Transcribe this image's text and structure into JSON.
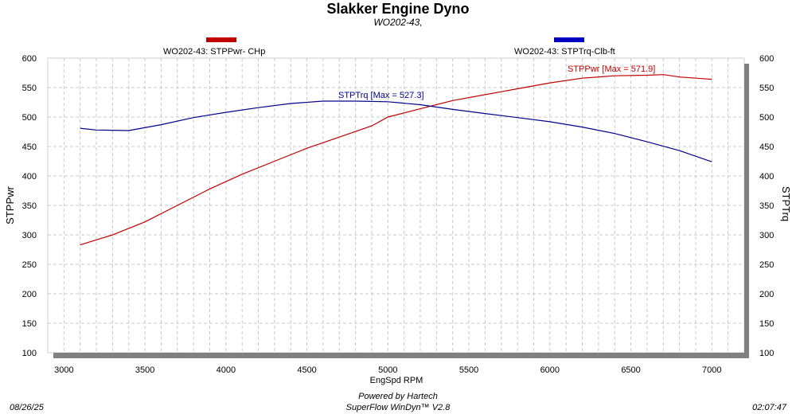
{
  "header": {
    "title": "Slakker Engine Dyno",
    "subtitle": "WO202-43,"
  },
  "footer": {
    "date": "08/26/25",
    "powered": "Powered by Hartech",
    "software": "SuperFlow WinDyn™ V2.8",
    "time": "02:07:47"
  },
  "colors": {
    "power": "#c00000",
    "torque": "#00008b",
    "grid": "#c8c8c8",
    "shadow": "#808080"
  },
  "chart_data": {
    "type": "line",
    "title": "Slakker Engine Dyno",
    "subtitle": "WO202-43,",
    "xlabel": "EngSpd  RPM",
    "ylabel": "STPPwr",
    "ylabel_right": "STPTrq",
    "xlim": [
      2900,
      7200
    ],
    "ylim": [
      100,
      600
    ],
    "xticks": [
      3000,
      3500,
      4000,
      4500,
      5000,
      5500,
      6000,
      6500,
      7000
    ],
    "yticks": [
      100,
      150,
      200,
      250,
      300,
      350,
      400,
      450,
      500,
      550,
      600
    ],
    "grid": true,
    "legend_placement": "top",
    "series": [
      {
        "name": "WO202-43: STPPwr- CHp",
        "annotation": "STPPwr [Max = 571.9]",
        "x": [
          3100,
          3300,
          3500,
          3700,
          3900,
          4100,
          4300,
          4500,
          4700,
          4900,
          5000,
          5200,
          5400,
          5600,
          5800,
          6000,
          6200,
          6400,
          6600,
          6700,
          6800,
          7000
        ],
        "values": [
          283,
          300,
          322,
          350,
          378,
          403,
          425,
          447,
          466,
          485,
          500,
          514,
          528,
          538,
          548,
          558,
          566,
          570,
          571,
          572,
          568,
          564
        ]
      },
      {
        "name": "WO202-43: STPTrq-Clb-ft",
        "annotation": "STPTrq [Max = 527.3]",
        "x": [
          3100,
          3200,
          3400,
          3600,
          3800,
          4000,
          4200,
          4400,
          4600,
          4800,
          5000,
          5200,
          5400,
          5600,
          5800,
          6000,
          6200,
          6400,
          6600,
          6800,
          7000
        ],
        "values": [
          481,
          478,
          477,
          487,
          499,
          508,
          516,
          523,
          527,
          527,
          526,
          521,
          513,
          506,
          499,
          492,
          483,
          472,
          458,
          443,
          424
        ]
      }
    ]
  }
}
